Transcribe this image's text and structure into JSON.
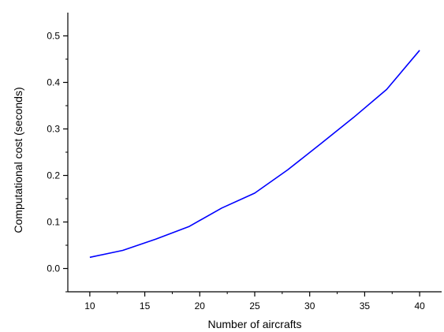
{
  "chart_data": {
    "type": "line",
    "title": "",
    "xlabel": "Number of aircrafts",
    "ylabel": "Computational cost (seconds)",
    "xlim": [
      8,
      42
    ],
    "ylim": [
      -0.05,
      0.55
    ],
    "x_ticks": [
      10,
      15,
      20,
      25,
      30,
      35,
      40
    ],
    "x_tick_labels": [
      "10",
      "15",
      "20",
      "25",
      "30",
      "35",
      "40"
    ],
    "y_ticks": [
      0.0,
      0.1,
      0.2,
      0.3,
      0.4,
      0.5
    ],
    "y_tick_labels": [
      "0.0",
      "0.1",
      "0.2",
      "0.3",
      "0.4",
      "0.5"
    ],
    "grid": false,
    "series": [
      {
        "color": "#0000ff",
        "x": [
          10,
          13,
          16,
          19,
          22,
          25,
          28,
          31,
          34,
          37,
          40
        ],
        "y": [
          0.024,
          0.039,
          0.063,
          0.09,
          0.13,
          0.162,
          0.212,
          0.268,
          0.325,
          0.385,
          0.469
        ]
      }
    ]
  }
}
